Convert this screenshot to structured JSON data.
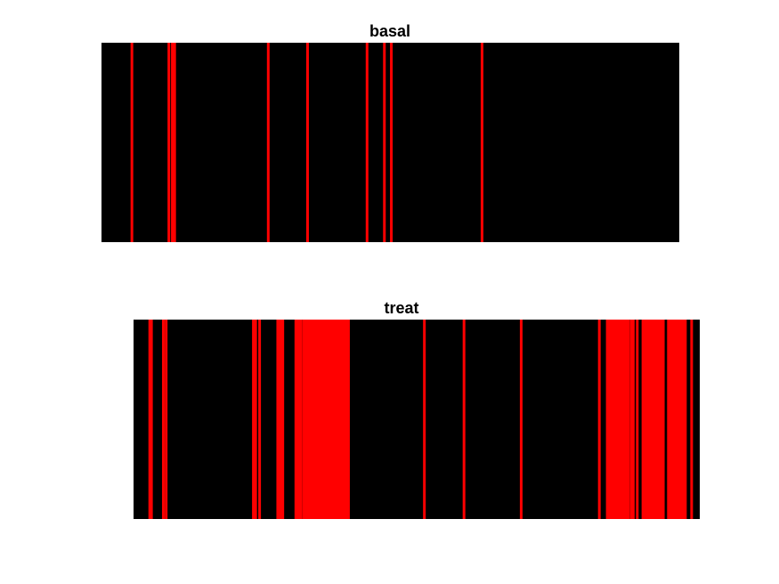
{
  "chart_data": [
    {
      "type": "heatmap",
      "title": "basal",
      "colors": {
        "background": "#000000",
        "event": "#ff0000"
      },
      "xlim": [
        0,
        1000
      ],
      "events": [
        52,
        116,
        122,
        126,
        288,
        356,
        459,
        489,
        501,
        658
      ]
    },
    {
      "type": "heatmap",
      "title": "treat",
      "colors": {
        "background": "#000000",
        "event": "#ff0000"
      },
      "xlim": [
        0,
        1000
      ],
      "events": [
        28,
        31,
        52,
        57,
        211,
        215,
        222,
        254,
        257,
        260,
        263,
        286,
        289,
        292,
        295,
        300,
        303,
        307,
        310,
        313,
        316,
        319,
        322,
        325,
        328,
        331,
        334,
        337,
        340,
        343,
        346,
        349,
        352,
        355,
        358,
        361,
        364,
        367,
        370,
        373,
        376,
        379,
        513,
        583,
        684,
        822,
        836,
        839,
        842,
        846,
        849,
        852,
        855,
        858,
        861,
        864,
        867,
        870,
        873,
        878,
        882,
        889,
        899,
        902,
        905,
        908,
        911,
        914,
        917,
        920,
        923,
        926,
        929,
        932,
        935,
        944,
        947,
        950,
        953,
        956,
        959,
        962,
        965,
        968,
        971,
        974,
        985
      ]
    }
  ]
}
